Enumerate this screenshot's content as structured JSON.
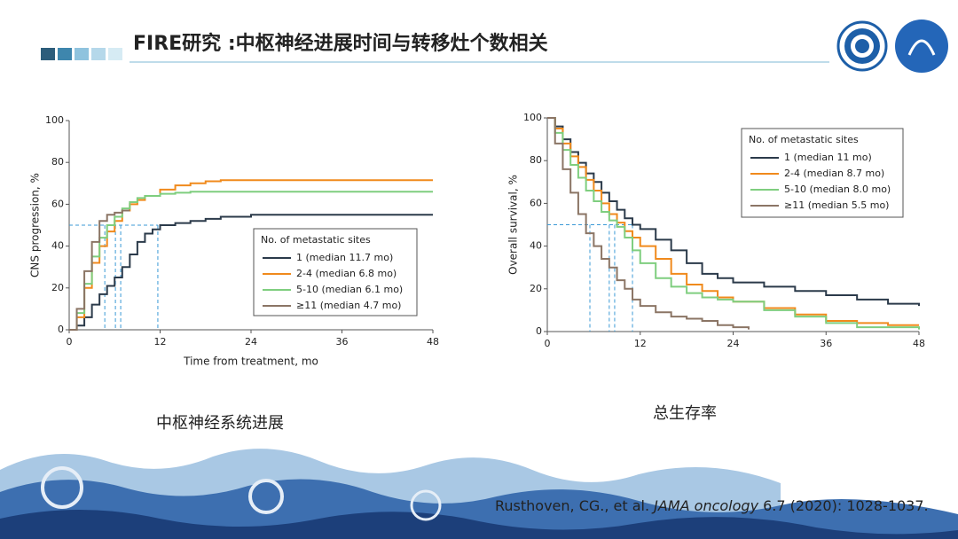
{
  "header": {
    "title": "FIRE研究 :中枢神经进展时间与转移灶个数相关"
  },
  "captions": [
    "中枢神经系统进展",
    "总生存率"
  ],
  "citation": {
    "authors": "Rusthoven, CG., et al. ",
    "journal": "JAMA oncology",
    "details": " 6.7 (2020): 1028-1037."
  },
  "chart_data": [
    {
      "type": "line",
      "drawstyle": "steps-post",
      "xlabel": "Time from treatment, mo",
      "ylabel": "CNS progression, %",
      "xlim": [
        0,
        48
      ],
      "xticks": [
        0,
        12,
        24,
        36,
        48
      ],
      "ylim": [
        0,
        100
      ],
      "yticks": [
        0,
        20,
        40,
        60,
        80,
        100
      ],
      "legend_title": "No. of metastatic sites",
      "reference_y": 50,
      "series": [
        {
          "name": "1 (median 11.7 mo)",
          "color": "#2b3a4a",
          "median": 11.7,
          "x": [
            0,
            1,
            2,
            3,
            4,
            5,
            6,
            7,
            8,
            9,
            10,
            11,
            12,
            14,
            16,
            18,
            20,
            24,
            30,
            36,
            48
          ],
          "values": [
            0,
            2,
            6,
            12,
            17,
            21,
            25,
            30,
            36,
            42,
            46,
            48,
            50,
            51,
            52,
            53,
            54,
            55,
            55,
            55,
            55
          ]
        },
        {
          "name": "2-4 (median 6.8 mo)",
          "color": "#f08a1c",
          "median": 6.8,
          "x": [
            0,
            1,
            2,
            3,
            4,
            5,
            6,
            7,
            8,
            9,
            10,
            12,
            14,
            16,
            18,
            20,
            24,
            36,
            48
          ],
          "values": [
            0,
            6,
            20,
            32,
            40,
            47,
            52,
            57,
            60,
            62,
            64,
            67,
            69,
            70,
            71,
            71.5,
            71.5,
            71.5,
            71.5
          ]
        },
        {
          "name": "5-10 (median 6.1 mo)",
          "color": "#7fce7f",
          "median": 6.1,
          "x": [
            0,
            1,
            2,
            3,
            4,
            5,
            6,
            7,
            8,
            9,
            10,
            12,
            14,
            16,
            20,
            48
          ],
          "values": [
            0,
            8,
            22,
            35,
            44,
            50,
            54,
            58,
            61,
            63,
            64,
            65,
            65.5,
            66,
            66,
            66
          ]
        },
        {
          "name": "≥11 (median 4.7 mo)",
          "color": "#8b7565",
          "median": 4.7,
          "x": [
            0,
            1,
            2,
            3,
            4,
            5,
            6,
            7,
            8
          ],
          "values": [
            0,
            10,
            28,
            42,
            52,
            55,
            56,
            57,
            57
          ]
        }
      ]
    },
    {
      "type": "line",
      "drawstyle": "steps-post",
      "ylabel": "Overall survival, %",
      "xlim": [
        0,
        48
      ],
      "xticks": [
        0,
        12,
        24,
        36,
        48
      ],
      "ylim": [
        0,
        100
      ],
      "yticks": [
        0,
        20,
        40,
        60,
        80,
        100
      ],
      "legend_title": "No. of metastatic sites",
      "reference_y": 50,
      "series": [
        {
          "name": "1 (median 11 mo)",
          "color": "#2b3a4a",
          "median": 11,
          "x": [
            0,
            1,
            2,
            3,
            4,
            5,
            6,
            7,
            8,
            9,
            10,
            11,
            12,
            14,
            16,
            18,
            20,
            22,
            24,
            28,
            32,
            36,
            40,
            44,
            48
          ],
          "values": [
            100,
            96,
            90,
            84,
            79,
            74,
            70,
            65,
            61,
            57,
            53,
            50,
            48,
            43,
            38,
            32,
            27,
            25,
            23,
            21,
            19,
            17,
            15,
            13,
            12
          ]
        },
        {
          "name": "2-4 (median 8.7 mo)",
          "color": "#f08a1c",
          "median": 8.7,
          "x": [
            0,
            1,
            2,
            3,
            4,
            5,
            6,
            7,
            8,
            9,
            10,
            11,
            12,
            14,
            16,
            18,
            20,
            22,
            24,
            28,
            32,
            36,
            40,
            44,
            48
          ],
          "values": [
            100,
            95,
            88,
            82,
            77,
            71,
            66,
            60,
            55,
            51,
            47,
            44,
            40,
            34,
            27,
            22,
            19,
            16,
            14,
            11,
            8,
            5,
            4,
            3,
            3
          ]
        },
        {
          "name": "5-10 (median 8.0 mo)",
          "color": "#7fce7f",
          "median": 8.0,
          "x": [
            0,
            1,
            2,
            3,
            4,
            5,
            6,
            7,
            8,
            9,
            10,
            11,
            12,
            14,
            16,
            18,
            20,
            22,
            24,
            28,
            32,
            36,
            40,
            48
          ],
          "values": [
            100,
            93,
            85,
            78,
            72,
            66,
            61,
            56,
            52,
            49,
            44,
            38,
            32,
            25,
            21,
            18,
            16,
            15,
            14,
            10,
            7,
            4,
            2,
            1
          ]
        },
        {
          "name": "≥11 (median 5.5 mo)",
          "color": "#8b7565",
          "median": 5.5,
          "x": [
            0,
            1,
            2,
            3,
            4,
            5,
            6,
            7,
            8,
            9,
            10,
            11,
            12,
            14,
            16,
            18,
            20,
            22,
            24,
            26
          ],
          "values": [
            100,
            88,
            76,
            65,
            55,
            46,
            40,
            34,
            30,
            24,
            20,
            15,
            12,
            9,
            7,
            6,
            5,
            3,
            2,
            1
          ]
        }
      ]
    }
  ]
}
